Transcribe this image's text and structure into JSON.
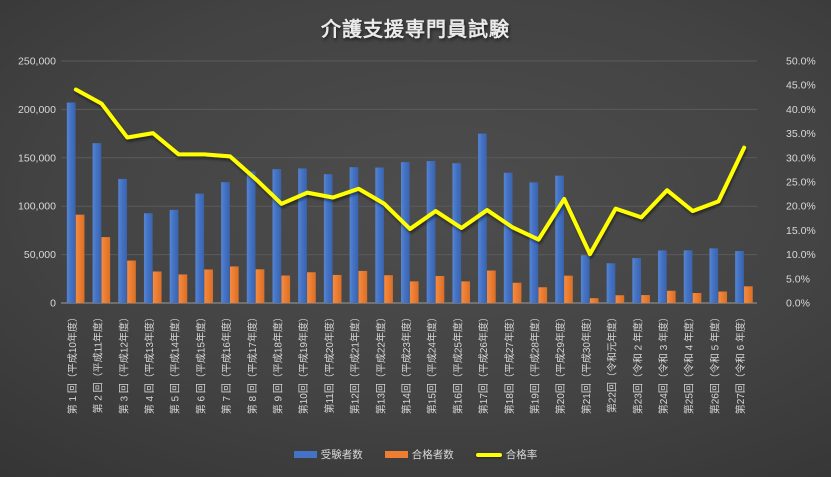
{
  "chart_data": {
    "type": "combo",
    "title": "介護支援専門員試験",
    "categories": [
      "第 1 回（平成10年度）",
      "第 2 回（平成11年度）",
      "第 3 回（平成12年度）",
      "第 4 回（平成13年度）",
      "第 5 回（平成14年度）",
      "第 6 回（平成15年度）",
      "第 7 回（平成16年度）",
      "第 8 回（平成17年度）",
      "第 9 回（平成18年度）",
      "第10回（平成19年度）",
      "第11回（平成20年度）",
      "第12回（平成21年度）",
      "第13回（平成22年度）",
      "第14回（平成23年度）",
      "第15回（平成24年度）",
      "第16回（平成25年度）",
      "第17回（平成26年度）",
      "第18回（平成27年度）",
      "第19回（平成28年度）",
      "第20回（平成29年度）",
      "第21回（平成30年度）",
      "第22回（令和元年度）",
      "第23回（令和 2 年度）",
      "第24回（令和 3 年度）",
      "第25回（令和 4 年度）",
      "第26回（令和 5 年度）",
      "第27回（令和 6 年度）"
    ],
    "series": [
      {
        "name": "受験者数",
        "type": "bar",
        "axis": "left",
        "color": "#4472C4",
        "values": [
          207080,
          165117,
          128153,
          92735,
          96207,
          112961,
          124791,
          136030,
          138262,
          139006,
          133072,
          140277,
          139959,
          145529,
          146586,
          144397,
          174974,
          134539,
          124585,
          131560,
          49332,
          41049,
          46415,
          54290,
          54406,
          56494,
          53699
        ]
      },
      {
        "name": "合格者数",
        "type": "bar",
        "axis": "left",
        "color": "#ED7D31",
        "values": [
          91269,
          68090,
          43854,
          32560,
          29508,
          34634,
          37781,
          34813,
          28391,
          31758,
          28992,
          33119,
          28703,
          22332,
          27905,
          22331,
          33539,
          20924,
          16281,
          28233,
          4990,
          8018,
          8200,
          12662,
          10328,
          11844,
          17228
        ]
      },
      {
        "name": "合格率",
        "type": "line",
        "axis": "right",
        "color": "#FFFF00",
        "unit": "%",
        "values": [
          44.1,
          41.2,
          34.2,
          35.1,
          30.7,
          30.7,
          30.3,
          25.6,
          20.5,
          22.8,
          21.8,
          23.6,
          20.5,
          15.3,
          19.0,
          15.5,
          19.2,
          15.6,
          13.1,
          21.5,
          10.1,
          19.5,
          17.7,
          23.3,
          19.0,
          21.0,
          32.1
        ]
      }
    ],
    "axes": {
      "left": {
        "min": 0,
        "max": 250000,
        "step": 50000,
        "tick_labels": [
          "0",
          "50,000",
          "100,000",
          "150,000",
          "200,000",
          "250,000"
        ]
      },
      "right": {
        "min": 0,
        "max": 50,
        "step": 5,
        "unit": "%",
        "tick_labels": [
          "0.0%",
          "5.0%",
          "10.0%",
          "15.0%",
          "20.0%",
          "25.0%",
          "30.0%",
          "35.0%",
          "40.0%",
          "45.0%",
          "50.0%"
        ]
      }
    },
    "grid": true,
    "legend_position": "bottom",
    "x_label_rotation_degrees": -90
  },
  "colors": {
    "background_center": "#4D4D4D",
    "background_edge": "#262626",
    "gridline": "#5B5B5B",
    "axis_line": "#9B9B9B",
    "axis_text": "#D9D9D9",
    "title_text": "#EAEAEA"
  }
}
